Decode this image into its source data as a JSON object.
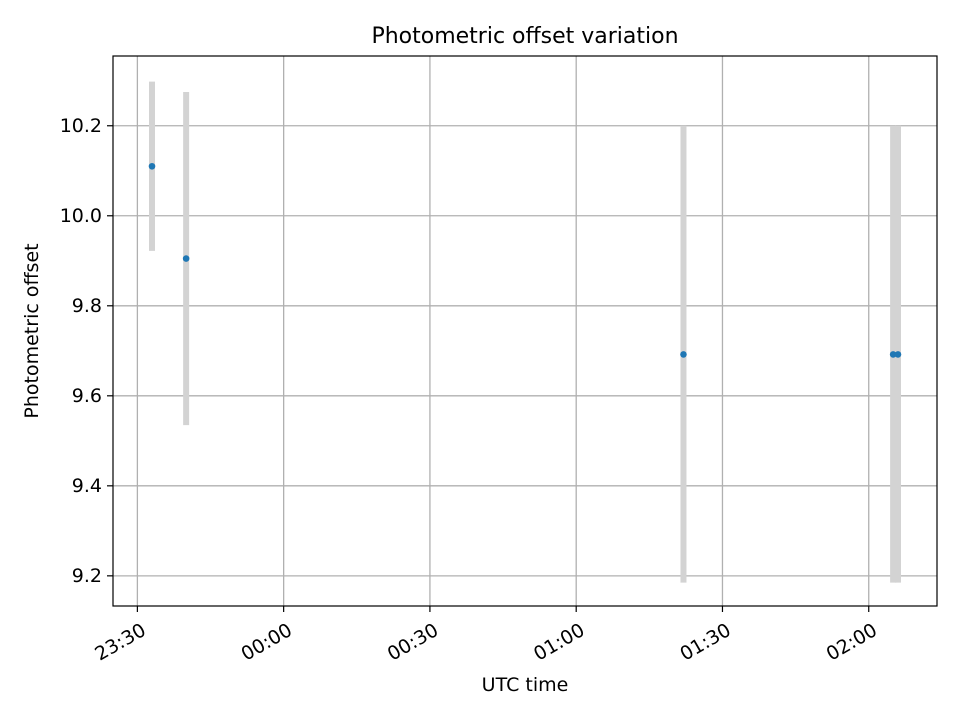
{
  "chart_data": {
    "type": "scatter",
    "title": "Photometric offset variation",
    "xlabel": "UTC time",
    "ylabel": "Photometric offset",
    "x_axis": {
      "kind": "time",
      "range": [
        "23:25",
        "02:14"
      ],
      "ticks": [
        "23:30",
        "00:00",
        "00:30",
        "01:00",
        "01:30",
        "02:00"
      ]
    },
    "y_axis": {
      "range": [
        9.133,
        10.355
      ],
      "ticks": [
        "9.2",
        "9.4",
        "9.6",
        "9.8",
        "10.0",
        "10.2"
      ]
    },
    "grid": true,
    "colors": {
      "marker": "#1f77b4",
      "errorbar": "#d3d3d3",
      "grid": "#b0b0b0",
      "axes": "#000000"
    },
    "series": [
      {
        "points": [
          {
            "x": "23:33",
            "y": 10.11,
            "ymin": 9.922,
            "ymax": 10.298
          },
          {
            "x": "23:40",
            "y": 9.905,
            "ymin": 9.535,
            "ymax": 10.275
          },
          {
            "x": "01:22",
            "y": 9.692,
            "ymin": 9.185,
            "ymax": 10.2
          },
          {
            "x": "02:05",
            "y": 9.692,
            "ymin": 9.185,
            "ymax": 10.2
          },
          {
            "x": "02:06",
            "y": 9.692,
            "ymin": 9.185,
            "ymax": 10.2
          }
        ]
      }
    ]
  }
}
